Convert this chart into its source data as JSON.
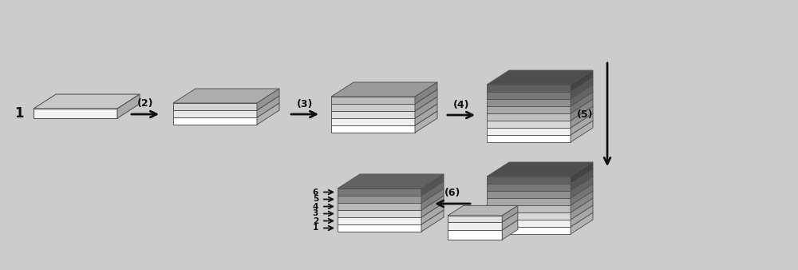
{
  "bg_color": "#cccccc",
  "arrow_color": "#111111",
  "text_color": "#111111",
  "step_labels": [
    "(2)",
    "(3)",
    "(4)",
    "(5)",
    "(6)"
  ],
  "number_label": "1",
  "layer_numbers": [
    "6",
    "5",
    "4",
    "3",
    "2",
    "1"
  ],
  "slab1_layers": [
    [
      0.12,
      "#f4f4f4"
    ]
  ],
  "slab2_layers": [
    [
      0.09,
      "#ffffff"
    ],
    [
      0.09,
      "#e8e8e8"
    ],
    [
      0.09,
      "#d4d4d4"
    ]
  ],
  "slab3_layers": [
    [
      0.09,
      "#ffffff"
    ],
    [
      0.09,
      "#eeeeee"
    ],
    [
      0.09,
      "#dedede"
    ],
    [
      0.09,
      "#cccccc"
    ],
    [
      0.09,
      "#bcbcbc"
    ]
  ],
  "slab4_layers": [
    [
      0.09,
      "#ffffff"
    ],
    [
      0.09,
      "#f0f0f0"
    ],
    [
      0.09,
      "#d8d8d8"
    ],
    [
      0.09,
      "#c0c0c0"
    ],
    [
      0.09,
      "#a8a8a8"
    ],
    [
      0.09,
      "#909090"
    ],
    [
      0.09,
      "#787878"
    ],
    [
      0.09,
      "#606060"
    ]
  ],
  "slab5_layers": [
    [
      0.09,
      "#ffffff"
    ],
    [
      0.09,
      "#f0f0f0"
    ],
    [
      0.09,
      "#d8d8d8"
    ],
    [
      0.09,
      "#c0c0c0"
    ],
    [
      0.09,
      "#a8a8a8"
    ],
    [
      0.09,
      "#909090"
    ],
    [
      0.09,
      "#787878"
    ],
    [
      0.09,
      "#606060"
    ]
  ],
  "slab6_main_layers": [
    [
      0.09,
      "#ffffff"
    ],
    [
      0.09,
      "#f2f2f2"
    ],
    [
      0.09,
      "#d8d8d8"
    ],
    [
      0.09,
      "#b8b8b8"
    ],
    [
      0.09,
      "#989898"
    ],
    [
      0.09,
      "#787878"
    ]
  ],
  "slab6_side_layers": [
    [
      0.12,
      "#ffffff"
    ],
    [
      0.1,
      "#eeeeee"
    ],
    [
      0.08,
      "#e0e0e0"
    ]
  ]
}
